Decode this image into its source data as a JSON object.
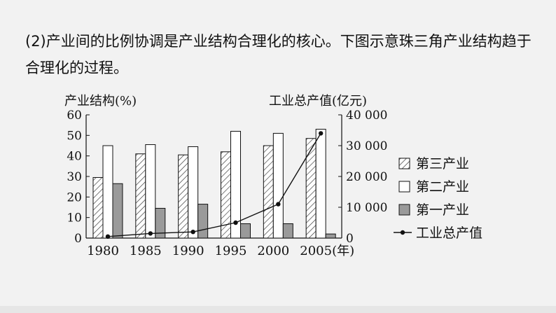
{
  "question": {
    "text": "(2)产业间的比例协调是产业结构合理化的核心。下图示意珠三角产业结构趋于合理化的过程。"
  },
  "chart_data": {
    "type": "bar",
    "categories": [
      "1980",
      "1985",
      "1990",
      "1995",
      "2000",
      "2005"
    ],
    "x_unit_label": "(年)",
    "ylabel": "产业结构(%)",
    "ylabel_right": "工业总产值(亿元)",
    "ylim": [
      0,
      60
    ],
    "y_ticks": [
      "0",
      "10",
      "20",
      "30",
      "40",
      "50",
      "60"
    ],
    "ylim_right": [
      0,
      40000
    ],
    "y_ticks_right": [
      "0",
      "10 000",
      "20 000",
      "30 000",
      "40 000"
    ],
    "grid": false,
    "legend_position": "right",
    "series": [
      {
        "name": "第三产业",
        "kind": "bar",
        "fill": "hatched",
        "values": [
          29.5,
          41,
          40.5,
          42,
          45,
          48.5
        ]
      },
      {
        "name": "第二产业",
        "kind": "bar",
        "fill": "white",
        "values": [
          45,
          45.5,
          44.5,
          52,
          51,
          53
        ]
      },
      {
        "name": "第一产业",
        "kind": "bar",
        "fill": "gray",
        "values": [
          26.5,
          14.5,
          16.5,
          7,
          7,
          2
        ]
      },
      {
        "name": "工业总产值",
        "kind": "line",
        "axis": "right",
        "values": [
          500,
          1500,
          2000,
          5000,
          11000,
          34000
        ]
      }
    ],
    "colors": {
      "gray_bar": "#9a9a9a",
      "hatch": "#333333",
      "line": "#111111"
    }
  }
}
